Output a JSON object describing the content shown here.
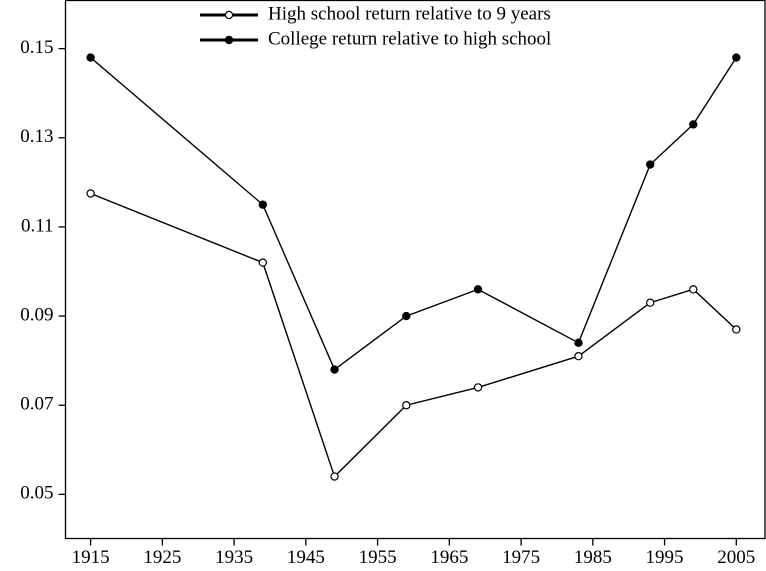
{
  "chart_data": {
    "type": "line",
    "x": [
      1915,
      1939,
      1949,
      1959,
      1969,
      1983,
      1993,
      1999,
      2005
    ],
    "series": [
      {
        "name": "High school return relative to 9 years",
        "color": "#000000",
        "marker": "open",
        "values": [
          0.1175,
          0.102,
          0.054,
          0.07,
          0.074,
          0.081,
          0.093,
          0.096,
          0.087
        ]
      },
      {
        "name": "College return relative to high school",
        "color": "#000000",
        "marker": "filled",
        "values": [
          0.148,
          0.115,
          0.078,
          0.09,
          0.096,
          0.084,
          0.124,
          0.133,
          0.148
        ]
      }
    ],
    "xlim": [
      1911.5,
      2009
    ],
    "xticks": [
      1915,
      1925,
      1935,
      1945,
      1955,
      1965,
      1975,
      1985,
      1995,
      2005
    ],
    "ylim": [
      0.0401,
      0.1608
    ],
    "yticks": [
      0.05,
      0.07,
      0.09,
      0.11,
      0.13,
      0.15
    ],
    "legend": "top",
    "grid": false
  }
}
